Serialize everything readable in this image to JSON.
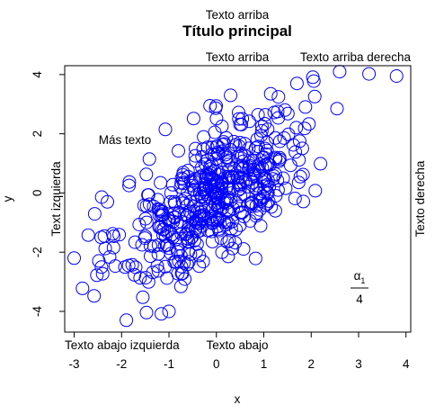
{
  "chart_data": {
    "type": "scatter",
    "title": "Título principal",
    "subtitle": "Texto arriba",
    "xlabel": "x",
    "ylabel": "y",
    "xlim": [
      -3.2,
      4.1
    ],
    "ylim": [
      -4.7,
      4.3
    ],
    "x_ticks": [
      -3,
      -2,
      -1,
      0,
      1,
      2,
      3,
      4
    ],
    "y_ticks": [
      -4,
      -2,
      0,
      2,
      4
    ],
    "x_tick_labels": [
      "-3",
      "-2",
      "-1",
      "0",
      "1",
      "2",
      "3",
      "4"
    ],
    "y_tick_labels": [
      "-4",
      "-2",
      "0",
      "2",
      "4"
    ],
    "grid": false,
    "marker": "open-circle",
    "point_color": "#0000ff",
    "approx_point_count": 500,
    "x_mean": 0.0,
    "x_sd": 1.0,
    "y_mean": 0.0,
    "y_sd": 1.5,
    "correlation": 0.65,
    "highlighted_points": [
      {
        "x": -3.0,
        "y": -2.2
      },
      {
        "x": -2.3,
        "y": -0.3
      },
      {
        "x": -1.9,
        "y": -4.3
      },
      {
        "x": -1.0,
        "y": -4.0
      },
      {
        "x": 0.3,
        "y": 3.3
      },
      {
        "x": 1.7,
        "y": 3.7
      },
      {
        "x": 2.6,
        "y": 4.1
      },
      {
        "x": 3.8,
        "y": 3.95
      }
    ],
    "annotations": {
      "top_right_margin": "Texto arriba",
      "top_right_margin_2": "Texto arriba derecha",
      "left_margin": "Text izquierda",
      "right_margin": "Texto derecha",
      "bottom_left_margin": "Texto abajo izquierda",
      "bottom_margin": "Texto abajo",
      "inside_text": "Más texto",
      "math_numerator": "α",
      "math_subscript": "1",
      "math_denominator": "4"
    }
  }
}
